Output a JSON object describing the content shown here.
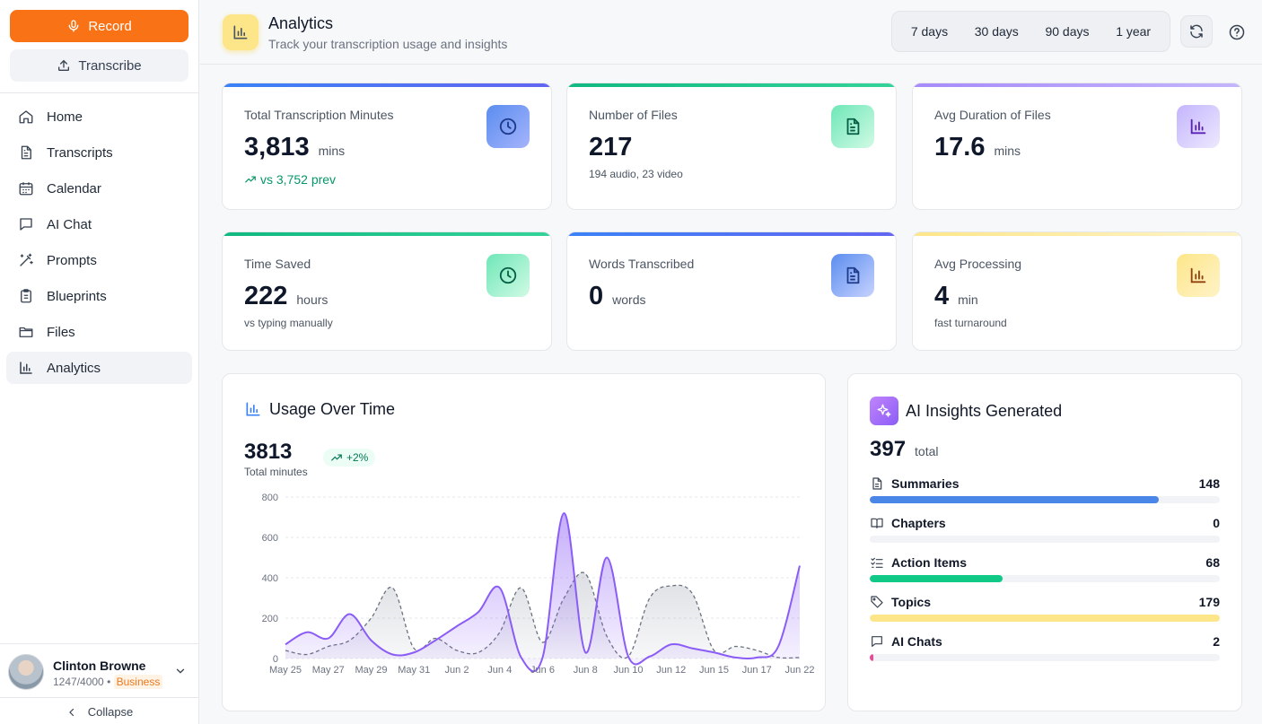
{
  "sidebar": {
    "record_label": "Record",
    "transcribe_label": "Transcribe",
    "items": [
      {
        "label": "Home",
        "icon": "home-icon"
      },
      {
        "label": "Transcripts",
        "icon": "file-text-icon"
      },
      {
        "label": "Calendar",
        "icon": "calendar-icon"
      },
      {
        "label": "AI Chat",
        "icon": "chat-bubble-icon"
      },
      {
        "label": "Prompts",
        "icon": "magic-wand-icon"
      },
      {
        "label": "Blueprints",
        "icon": "clipboard-icon"
      },
      {
        "label": "Files",
        "icon": "folder-icon"
      },
      {
        "label": "Analytics",
        "icon": "bar-chart-icon",
        "active": true
      }
    ],
    "user": {
      "name": "Clinton Browne",
      "usage": "1247/4000",
      "separator": "•",
      "plan": "Business"
    },
    "collapse_label": "Collapse"
  },
  "header": {
    "title": "Analytics",
    "subtitle": "Track your transcription usage and insights",
    "ranges": [
      "7 days",
      "30 days",
      "90 days",
      "1 year"
    ]
  },
  "stats": [
    {
      "label": "Total Transcription Minutes",
      "value": "3,813",
      "unit": "mins",
      "trend": "vs 3,752 prev",
      "icon": "clock-icon",
      "color": "#5b7de8"
    },
    {
      "label": "Number of Files",
      "value": "217",
      "unit": "",
      "sub": "194 audio, 23 video",
      "icon": "file-text-icon",
      "color": "#10b981"
    },
    {
      "label": "Avg Duration of Files",
      "value": "17.6",
      "unit": "mins",
      "icon": "bar-chart-icon",
      "color": "#a78bfa"
    },
    {
      "label": "Time Saved",
      "value": "222",
      "unit": "hours",
      "sub": "vs typing manually",
      "icon": "clock-icon",
      "color": "#10b981"
    },
    {
      "label": "Words Transcribed",
      "value": "0",
      "unit": "words",
      "icon": "file-text-icon",
      "color": "#5b7de8"
    },
    {
      "label": "Avg Processing",
      "value": "4",
      "unit": "min",
      "sub": "fast turnaround",
      "icon": "bar-chart-icon",
      "color": "#fcd34d"
    }
  ],
  "usage": {
    "title": "Usage Over Time",
    "total": "3813",
    "total_label": "Total minutes",
    "change": "+2%"
  },
  "chart_data": {
    "type": "area",
    "x": [
      "May 25",
      "May 26",
      "May 27",
      "May 28",
      "May 29",
      "May 30",
      "May 31",
      "Jun 1",
      "Jun 2",
      "Jun 3",
      "Jun 4",
      "Jun 5",
      "Jun 6",
      "Jun 7",
      "Jun 8",
      "Jun 9",
      "Jun 10",
      "Jun 11",
      "Jun 12",
      "Jun 13",
      "Jun 15",
      "Jun 16",
      "Jun 17",
      "Jun 18",
      "Jun 22"
    ],
    "tick_labels": [
      "May 25",
      "May 27",
      "May 29",
      "May 31",
      "Jun 2",
      "Jun 4",
      "Jun 6",
      "Jun 8",
      "Jun 10",
      "Jun 12",
      "Jun 15",
      "Jun 17",
      "Jun 22"
    ],
    "series": [
      {
        "name": "current",
        "style": "solid",
        "color": "#8b5cf6",
        "values": [
          70,
          130,
          100,
          220,
          90,
          20,
          30,
          90,
          160,
          230,
          350,
          5,
          5,
          720,
          30,
          500,
          10,
          10,
          70,
          50,
          30,
          5,
          5,
          60,
          460
        ]
      },
      {
        "name": "previous",
        "style": "dashed",
        "color": "#6b7280",
        "values": [
          40,
          20,
          60,
          90,
          200,
          350,
          50,
          100,
          40,
          30,
          130,
          350,
          80,
          300,
          420,
          110,
          10,
          300,
          360,
          320,
          40,
          60,
          40,
          5,
          5
        ]
      }
    ],
    "ylim": [
      0,
      800
    ],
    "yticks": [
      0,
      200,
      400,
      600,
      800
    ],
    "grid": true
  },
  "insights": {
    "title": "AI Insights Generated",
    "total": "397",
    "total_unit": "total",
    "items": [
      {
        "label": "Summaries",
        "value": "148",
        "icon": "file-text-icon",
        "color": "#4a86e8",
        "frac": 0.826
      },
      {
        "label": "Chapters",
        "value": "0",
        "icon": "book-open-icon",
        "color": "#4a86e8",
        "frac": 0
      },
      {
        "label": "Action Items",
        "value": "68",
        "icon": "checklist-icon",
        "color": "#10c987",
        "frac": 0.38
      },
      {
        "label": "Topics",
        "value": "179",
        "icon": "tag-icon",
        "color": "#fde68a",
        "frac": 1.0
      },
      {
        "label": "AI Chats",
        "value": "2",
        "icon": "chat-bubble-icon",
        "color": "#ec4899",
        "frac": 0.011
      }
    ]
  }
}
